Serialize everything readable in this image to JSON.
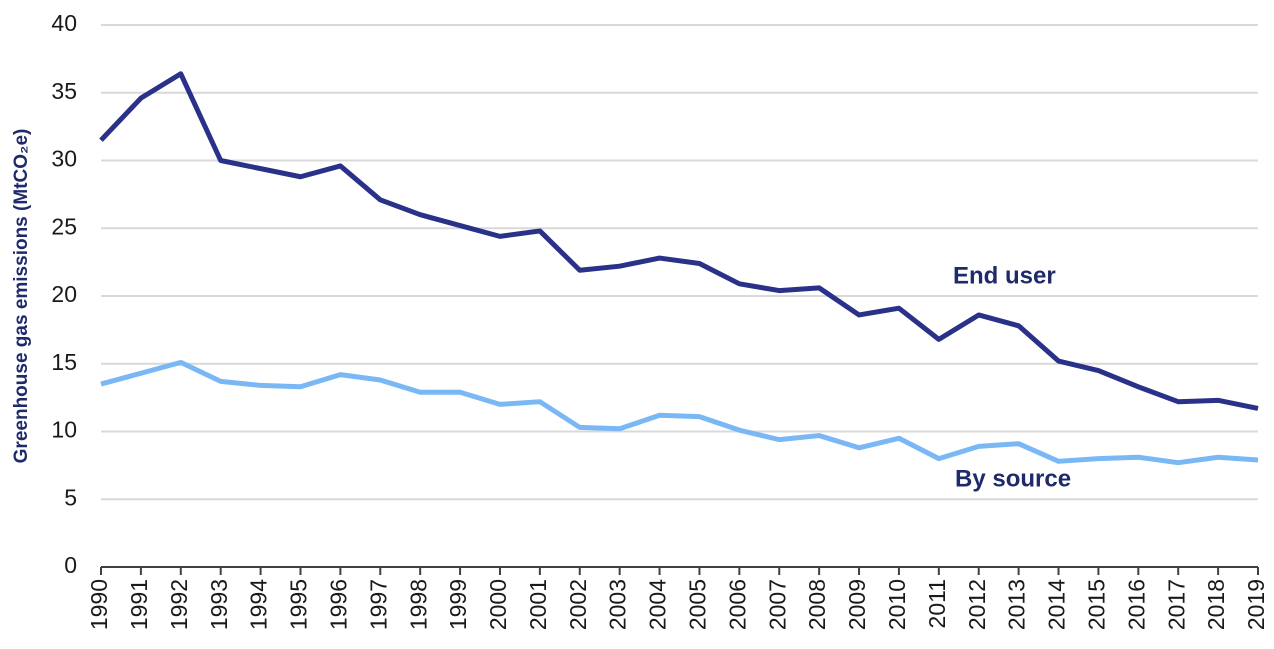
{
  "chart_data": {
    "type": "line",
    "y_label": "Greenhouse gas emissions (MtCO₂e)",
    "categories": [
      "1990",
      "1991",
      "1992",
      "1993",
      "1994",
      "1995",
      "1996",
      "1997",
      "1998",
      "1999",
      "2000",
      "2001",
      "2002",
      "2003",
      "2004",
      "2005",
      "2006",
      "2007",
      "2008",
      "2009",
      "2010",
      "2011",
      "2012",
      "2013",
      "2014",
      "2015",
      "2016",
      "2017",
      "2018",
      "2019"
    ],
    "series": [
      {
        "name": "End user",
        "color": "#2a3189",
        "values": [
          31.5,
          34.6,
          36.4,
          30.0,
          29.4,
          28.8,
          29.6,
          27.1,
          26.0,
          25.2,
          24.4,
          24.8,
          21.9,
          22.2,
          22.8,
          22.4,
          20.9,
          20.4,
          20.6,
          18.6,
          19.1,
          16.8,
          18.6,
          17.8,
          15.2,
          14.5,
          13.3,
          12.2,
          12.3,
          11.7
        ]
      },
      {
        "name": "By source",
        "color": "#7ab8f5",
        "values": [
          13.5,
          14.3,
          15.1,
          13.7,
          13.4,
          13.3,
          14.2,
          13.8,
          12.9,
          12.9,
          12.0,
          12.2,
          10.3,
          10.2,
          11.2,
          11.1,
          10.1,
          9.4,
          9.7,
          8.8,
          9.5,
          8.0,
          8.9,
          9.1,
          7.8,
          8.0,
          8.1,
          7.7,
          8.1,
          7.9
        ]
      }
    ],
    "ylim": [
      0,
      40
    ],
    "yticks": [
      0,
      5,
      10,
      15,
      20,
      25,
      30,
      35,
      40
    ],
    "grid": true
  }
}
